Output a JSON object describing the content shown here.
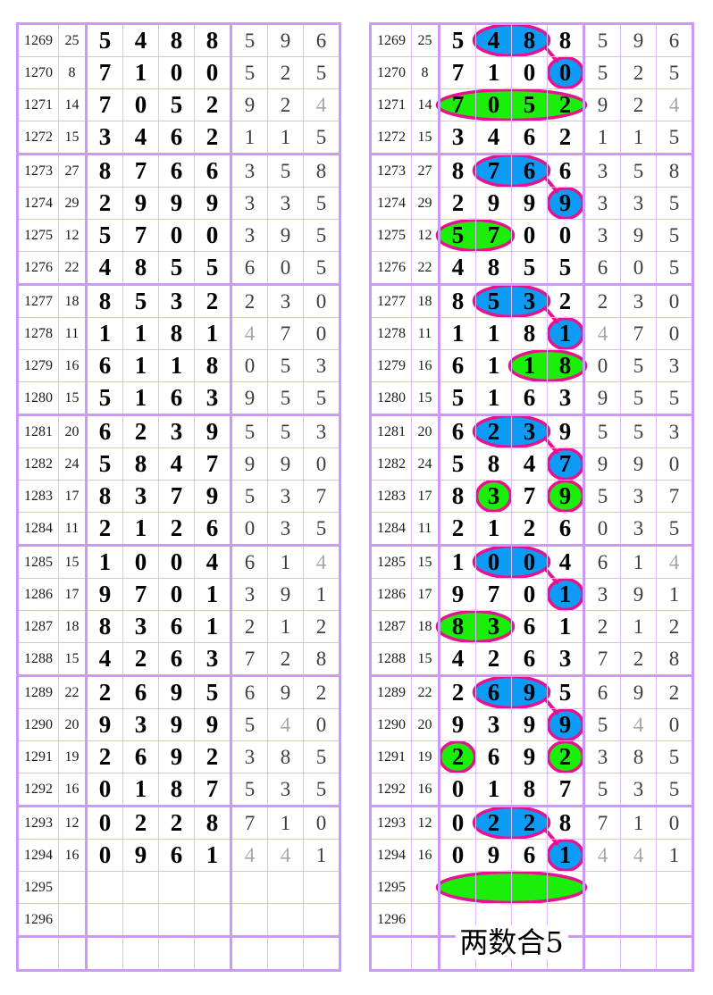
{
  "page": {
    "background": "#ffffff"
  },
  "grid": {
    "thin_line": "#dcbcff",
    "thick_line": "#cc99fb"
  },
  "highlight_colors": {
    "blue": "#0d9bf5",
    "green": "#1bef09",
    "outline": "#e8128e"
  },
  "bottom_label": "两数合5",
  "rows": [
    {
      "period": "1269",
      "sum": "25",
      "digits": [
        "5",
        "4",
        "8",
        "8",
        "5",
        "9",
        "6"
      ]
    },
    {
      "period": "1270",
      "sum": "8",
      "digits": [
        "7",
        "1",
        "0",
        "0",
        "5",
        "2",
        "5"
      ]
    },
    {
      "period": "1271",
      "sum": "14",
      "digits": [
        "7",
        "0",
        "5",
        "2",
        "9",
        "2",
        "4"
      ]
    },
    {
      "period": "1272",
      "sum": "15",
      "digits": [
        "3",
        "4",
        "6",
        "2",
        "1",
        "1",
        "5"
      ]
    },
    {
      "period": "1273",
      "sum": "27",
      "digits": [
        "8",
        "7",
        "6",
        "6",
        "3",
        "5",
        "8"
      ]
    },
    {
      "period": "1274",
      "sum": "29",
      "digits": [
        "2",
        "9",
        "9",
        "9",
        "3",
        "3",
        "5"
      ]
    },
    {
      "period": "1275",
      "sum": "12",
      "digits": [
        "5",
        "7",
        "0",
        "0",
        "3",
        "9",
        "5"
      ]
    },
    {
      "period": "1276",
      "sum": "22",
      "digits": [
        "4",
        "8",
        "5",
        "5",
        "6",
        "0",
        "5"
      ]
    },
    {
      "period": "1277",
      "sum": "18",
      "digits": [
        "8",
        "5",
        "3",
        "2",
        "2",
        "3",
        "0"
      ]
    },
    {
      "period": "1278",
      "sum": "11",
      "digits": [
        "1",
        "1",
        "8",
        "1",
        "4",
        "7",
        "0"
      ]
    },
    {
      "period": "1279",
      "sum": "16",
      "digits": [
        "6",
        "1",
        "1",
        "8",
        "0",
        "5",
        "3"
      ]
    },
    {
      "period": "1280",
      "sum": "15",
      "digits": [
        "5",
        "1",
        "6",
        "3",
        "9",
        "5",
        "5"
      ]
    },
    {
      "period": "1281",
      "sum": "20",
      "digits": [
        "6",
        "2",
        "3",
        "9",
        "5",
        "5",
        "3"
      ]
    },
    {
      "period": "1282",
      "sum": "24",
      "digits": [
        "5",
        "8",
        "4",
        "7",
        "9",
        "9",
        "0"
      ]
    },
    {
      "period": "1283",
      "sum": "17",
      "digits": [
        "8",
        "3",
        "7",
        "9",
        "5",
        "3",
        "7"
      ]
    },
    {
      "period": "1284",
      "sum": "11",
      "digits": [
        "2",
        "1",
        "2",
        "6",
        "0",
        "3",
        "5"
      ]
    },
    {
      "period": "1285",
      "sum": "15",
      "digits": [
        "1",
        "0",
        "0",
        "4",
        "6",
        "1",
        "4"
      ]
    },
    {
      "period": "1286",
      "sum": "17",
      "digits": [
        "9",
        "7",
        "0",
        "1",
        "3",
        "9",
        "1"
      ]
    },
    {
      "period": "1287",
      "sum": "18",
      "digits": [
        "8",
        "3",
        "6",
        "1",
        "2",
        "1",
        "2"
      ]
    },
    {
      "period": "1288",
      "sum": "15",
      "digits": [
        "4",
        "2",
        "6",
        "3",
        "7",
        "2",
        "8"
      ]
    },
    {
      "period": "1289",
      "sum": "22",
      "digits": [
        "2",
        "6",
        "9",
        "5",
        "6",
        "9",
        "2"
      ]
    },
    {
      "period": "1290",
      "sum": "20",
      "digits": [
        "9",
        "3",
        "9",
        "9",
        "5",
        "4",
        "0"
      ]
    },
    {
      "period": "1291",
      "sum": "19",
      "digits": [
        "2",
        "6",
        "9",
        "2",
        "3",
        "8",
        "5"
      ]
    },
    {
      "period": "1292",
      "sum": "16",
      "digits": [
        "0",
        "1",
        "8",
        "7",
        "5",
        "3",
        "5"
      ]
    },
    {
      "period": "1293",
      "sum": "12",
      "digits": [
        "0",
        "2",
        "2",
        "8",
        "7",
        "1",
        "0"
      ]
    },
    {
      "period": "1294",
      "sum": "16",
      "digits": [
        "0",
        "9",
        "6",
        "1",
        "4",
        "4",
        "1"
      ]
    },
    {
      "period": "1295",
      "sum": "",
      "digits": [
        "",
        "",
        "",
        "",
        "",
        "",
        ""
      ]
    },
    {
      "period": "1296",
      "sum": "",
      "digits": [
        "",
        "",
        "",
        "",
        "",
        "",
        ""
      ]
    },
    {
      "period": "",
      "sum": "",
      "digits": [
        "",
        "",
        "",
        "",
        "",
        "",
        ""
      ]
    }
  ],
  "block_start_rows": [
    4,
    8,
    12,
    16,
    20,
    24,
    28
  ],
  "overlays": {
    "marks": [
      {
        "row": 0,
        "col_start": 2,
        "col_end": 3,
        "color": "blue"
      },
      {
        "row": 1,
        "col_start": 4,
        "col_end": 4,
        "color": "blue"
      },
      {
        "row": 2,
        "col_start": 1,
        "col_end": 4,
        "color": "green"
      },
      {
        "row": 4,
        "col_start": 2,
        "col_end": 3,
        "color": "blue"
      },
      {
        "row": 5,
        "col_start": 4,
        "col_end": 4,
        "color": "blue"
      },
      {
        "row": 6,
        "col_start": 1,
        "col_end": 2,
        "color": "green"
      },
      {
        "row": 8,
        "col_start": 2,
        "col_end": 3,
        "color": "blue"
      },
      {
        "row": 9,
        "col_start": 4,
        "col_end": 4,
        "color": "blue"
      },
      {
        "row": 10,
        "col_start": 3,
        "col_end": 4,
        "color": "green"
      },
      {
        "row": 12,
        "col_start": 2,
        "col_end": 3,
        "color": "blue"
      },
      {
        "row": 13,
        "col_start": 4,
        "col_end": 4,
        "color": "blue"
      },
      {
        "row": 14,
        "col_start": 2,
        "col_end": 2,
        "color": "green"
      },
      {
        "row": 14,
        "col_start": 4,
        "col_end": 4,
        "color": "green"
      },
      {
        "row": 16,
        "col_start": 2,
        "col_end": 3,
        "color": "blue"
      },
      {
        "row": 17,
        "col_start": 4,
        "col_end": 4,
        "color": "blue"
      },
      {
        "row": 18,
        "col_start": 1,
        "col_end": 2,
        "color": "green"
      },
      {
        "row": 20,
        "col_start": 2,
        "col_end": 3,
        "color": "blue"
      },
      {
        "row": 21,
        "col_start": 4,
        "col_end": 4,
        "color": "blue"
      },
      {
        "row": 22,
        "col_start": 1,
        "col_end": 1,
        "color": "green"
      },
      {
        "row": 22,
        "col_start": 4,
        "col_end": 4,
        "color": "green"
      },
      {
        "row": 24,
        "col_start": 2,
        "col_end": 3,
        "color": "blue"
      },
      {
        "row": 25,
        "col_start": 4,
        "col_end": 4,
        "color": "blue"
      },
      {
        "row": 26,
        "col_start": 1,
        "col_end": 4,
        "color": "green"
      }
    ],
    "connectors": [
      {
        "from": 0,
        "to": 1
      },
      {
        "from": 3,
        "to": 4
      },
      {
        "from": 6,
        "to": 7
      },
      {
        "from": 9,
        "to": 10
      },
      {
        "from": 13,
        "to": 14
      },
      {
        "from": 16,
        "to": 17
      },
      {
        "from": 20,
        "to": 21
      }
    ]
  },
  "chart_data": {
    "type": "table",
    "columns": [
      "period",
      "sum",
      "n1",
      "n2",
      "n3",
      "n4",
      "t1",
      "t2",
      "t3"
    ],
    "rows": [
      [
        "1269",
        25,
        5,
        4,
        8,
        8,
        5,
        9,
        6
      ],
      [
        "1270",
        8,
        7,
        1,
        0,
        0,
        5,
        2,
        5
      ],
      [
        "1271",
        14,
        7,
        0,
        5,
        2,
        9,
        2,
        4
      ],
      [
        "1272",
        15,
        3,
        4,
        6,
        2,
        1,
        1,
        5
      ],
      [
        "1273",
        27,
        8,
        7,
        6,
        6,
        3,
        5,
        8
      ],
      [
        "1274",
        29,
        2,
        9,
        9,
        9,
        3,
        3,
        5
      ],
      [
        "1275",
        12,
        5,
        7,
        0,
        0,
        3,
        9,
        5
      ],
      [
        "1276",
        22,
        4,
        8,
        5,
        5,
        6,
        0,
        5
      ],
      [
        "1277",
        18,
        8,
        5,
        3,
        2,
        2,
        3,
        0
      ],
      [
        "1278",
        11,
        1,
        1,
        8,
        1,
        4,
        7,
        0
      ],
      [
        "1279",
        16,
        6,
        1,
        1,
        8,
        0,
        5,
        3
      ],
      [
        "1280",
        15,
        5,
        1,
        6,
        3,
        9,
        5,
        5
      ],
      [
        "1281",
        20,
        6,
        2,
        3,
        9,
        5,
        5,
        3
      ],
      [
        "1282",
        24,
        5,
        8,
        4,
        7,
        9,
        9,
        0
      ],
      [
        "1283",
        17,
        8,
        3,
        7,
        9,
        5,
        3,
        7
      ],
      [
        "1284",
        11,
        2,
        1,
        2,
        6,
        0,
        3,
        5
      ],
      [
        "1285",
        15,
        1,
        0,
        0,
        4,
        6,
        1,
        4
      ],
      [
        "1286",
        17,
        9,
        7,
        0,
        1,
        3,
        9,
        1
      ],
      [
        "1287",
        18,
        8,
        3,
        6,
        1,
        2,
        1,
        2
      ],
      [
        "1288",
        15,
        4,
        2,
        6,
        3,
        7,
        2,
        8
      ],
      [
        "1289",
        22,
        2,
        6,
        9,
        5,
        6,
        9,
        2
      ],
      [
        "1290",
        20,
        9,
        3,
        9,
        9,
        5,
        4,
        0
      ],
      [
        "1291",
        19,
        2,
        6,
        9,
        2,
        3,
        8,
        5
      ],
      [
        "1292",
        16,
        0,
        1,
        8,
        7,
        5,
        3,
        5
      ],
      [
        "1293",
        12,
        0,
        2,
        2,
        8,
        7,
        1,
        0
      ],
      [
        "1294",
        16,
        0,
        9,
        6,
        1,
        4,
        4,
        1
      ],
      [
        "1295",
        null,
        null,
        null,
        null,
        null,
        null,
        null,
        null
      ],
      [
        "1296",
        null,
        null,
        null,
        null,
        null,
        null,
        null,
        null
      ]
    ],
    "annotation": "两数合5",
    "legend": "blue ellipses mark digit pairs linked to next-draw digit; green ellipses mark matched digits; 1295 green ellipse is the prediction zone"
  }
}
